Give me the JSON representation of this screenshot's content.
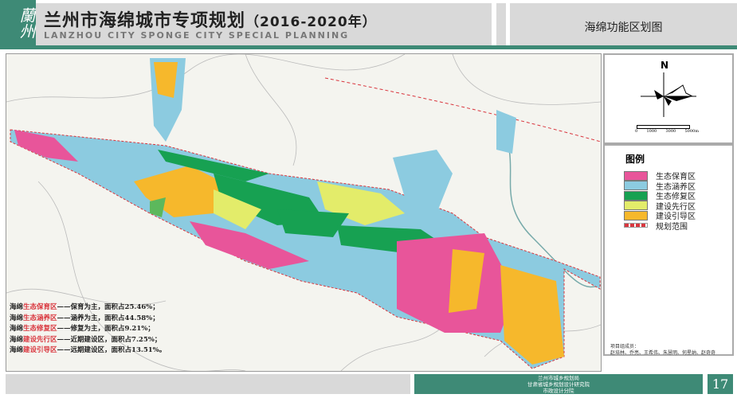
{
  "header": {
    "logo_text": "蘭州",
    "title_cn": "兰州市海绵城市专项规划",
    "title_year": "（2016-2020年）",
    "title_en": "LANZHOU CITY SPONGE CITY SPECIAL PLANNING",
    "map_title": "海绵功能区划图"
  },
  "compass": {
    "north_label": "N",
    "scale_labels": [
      "0",
      "1000",
      "3000",
      "5000m"
    ]
  },
  "legend": {
    "title": "图例",
    "items": [
      {
        "label": "生态保育区",
        "color": "#e8559a"
      },
      {
        "label": "生态涵养区",
        "color": "#8ccbe0"
      },
      {
        "label": "生态修复区",
        "color": "#17a152"
      },
      {
        "label": "建设先行区",
        "color": "#e3ec6a"
      },
      {
        "label": "建设引导区",
        "color": "#f6b82c"
      },
      {
        "label": "规划范围",
        "color": "#d9363e"
      }
    ]
  },
  "notes": [
    {
      "prefix": "海绵",
      "zone": "生态保育区",
      "desc": "——保育为主，面积占25.46%；"
    },
    {
      "prefix": "海绵",
      "zone": "生态涵养区",
      "desc": "——涵养为主，面积占44.58%；"
    },
    {
      "prefix": "海绵",
      "zone": "生态修复区",
      "desc": "——修复为主，面积占9.21%；"
    },
    {
      "prefix": "海绵",
      "zone": "建设先行区",
      "desc": "——近期建设区，面积占7.25%；"
    },
    {
      "prefix": "海绵",
      "zone": "建设引导区",
      "desc": "——远期建设区，面积占13.51%。"
    }
  ],
  "credits": {
    "label": "项目组成员：",
    "names": "赵培林、乔亮、王希伟、朱慧明、何星纳、赵奇奇"
  },
  "footer": {
    "org1": "兰州市城乡规划局",
    "org2": "甘肃省城乡规划设计研究院",
    "org3": "市政设计分院",
    "page": "17"
  }
}
